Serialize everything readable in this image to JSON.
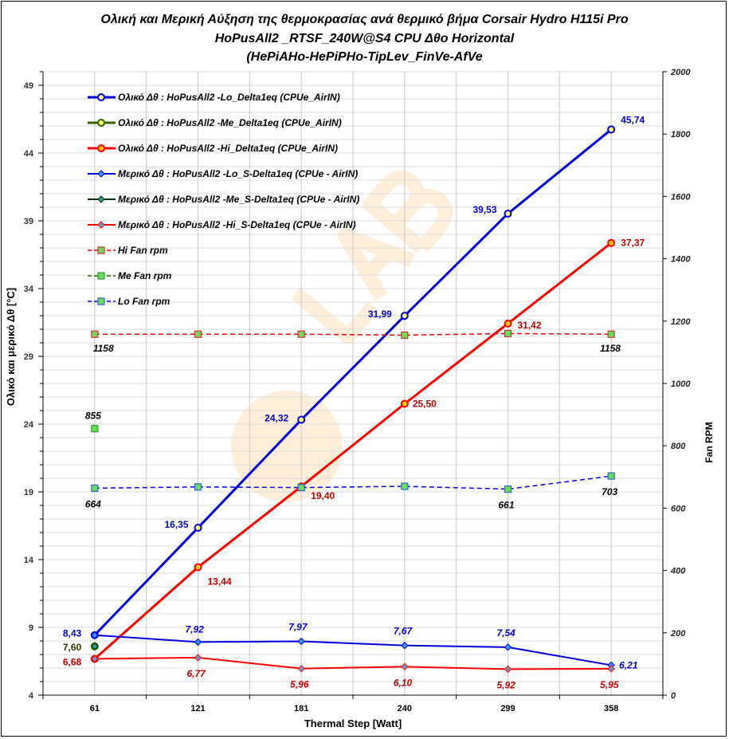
{
  "chart_data": {
    "type": "line",
    "title": [
      "Ολική και Μερική Αύξηση της θερμοκρασίας ανά θερμικό βήμα   Corsair Hydro H115i Pro",
      "HoPusAll2 _RTSF_240W@S4   CPU  Δθο Horizontal",
      "(HePiAHo-HePiPHo-TipLev_FinVe-AfVe"
    ],
    "xlabel": "Thermal Step [Watt]",
    "ylabel": "Ολικό  και  μερικό   Δθ  [°C]",
    "y2label": "Fan RPM",
    "categories": [
      "61",
      "121",
      "181",
      "240",
      "299",
      "358"
    ],
    "ylim": [
      4,
      50
    ],
    "yticks": [
      4,
      9,
      14,
      19,
      24,
      29,
      34,
      39,
      44,
      49
    ],
    "y2lim": [
      0,
      2000
    ],
    "y2ticks": [
      0,
      200,
      400,
      600,
      800,
      1000,
      1200,
      1400,
      1600,
      1800,
      2000
    ],
    "grid": true,
    "legend_placement": "top-left",
    "watermark": "LAB",
    "series": [
      {
        "name": "Ολικό Δθ : HoPusAll2 -Lo_Delta1eq (CPUe_AirIN)",
        "axis": "left",
        "color": "#0000dd",
        "marker": "circle",
        "marker_fill": "#ffff66",
        "width": 3,
        "dash": false,
        "values": [
          8.43,
          16.35,
          24.32,
          31.99,
          39.53,
          45.74
        ],
        "labels": [
          "8,43",
          "16,35",
          "24,32",
          "31,99",
          "39,53",
          "45,74"
        ],
        "label_color": "#0000cc",
        "label_italic": false
      },
      {
        "name": "Ολικό Δθ : HoPusAll2 -Me_Delta1eq (CPUe_AirIN)",
        "axis": "left",
        "color": "#336600",
        "marker": "circle",
        "marker_fill": "#ffff66",
        "width": 3,
        "dash": false,
        "values": [
          7.6,
          null,
          null,
          null,
          null,
          null
        ],
        "labels": [
          "7,60",
          null,
          null,
          null,
          null,
          null
        ],
        "label_color": "#333300",
        "label_italic": false
      },
      {
        "name": "Ολικό Δθ : HoPusAll2 -Hi_Delta1eq (CPUe_AirIN)",
        "axis": "left",
        "color": "#ff0000",
        "marker": "circle",
        "marker_fill": "#ffcc00",
        "width": 3,
        "dash": false,
        "values": [
          6.68,
          13.44,
          19.4,
          25.5,
          31.42,
          37.37
        ],
        "labels": [
          "6,68",
          "13,44",
          "19,40",
          "25,50",
          "31,42",
          "37,37"
        ],
        "label_color": "#c00000",
        "label_italic": false
      },
      {
        "name": "Μερικό Δθ : HoPusAll2 -Lo_S-Delta1eq (CPUe - AirIN)",
        "axis": "left",
        "color": "#0000dd",
        "marker": "diamond",
        "marker_fill": "#3399ff",
        "width": 2,
        "dash": false,
        "values": [
          8.43,
          7.92,
          7.97,
          7.67,
          7.54,
          6.21
        ],
        "labels": [
          null,
          "7,92",
          "7,97",
          "7,67",
          "7,54",
          "6,21"
        ],
        "label_color": "#0000cc",
        "label_italic": true
      },
      {
        "name": "Μερικό Δθ : HoPusAll2 -Me_S-Delta1eq (CPUe - AirIN)",
        "axis": "left",
        "color": "#003300",
        "marker": "diamond",
        "marker_fill": "#339999",
        "width": 2,
        "dash": false,
        "values": [
          7.6,
          null,
          null,
          null,
          null,
          null
        ],
        "labels": [
          null,
          null,
          null,
          null,
          null,
          null
        ],
        "label_color": "#003300",
        "label_italic": true
      },
      {
        "name": "Μερικό Δθ : HoPusAll2 -Hi_S-Delta1eq (CPUe - AirIN)",
        "axis": "left",
        "color": "#ff0000",
        "marker": "diamond",
        "marker_fill": "#6699cc",
        "width": 2,
        "dash": false,
        "values": [
          6.68,
          6.77,
          5.96,
          6.1,
          5.92,
          5.95
        ],
        "labels": [
          null,
          "6,77",
          "5,96",
          "6,10",
          "5,92",
          "5,95"
        ],
        "label_color": "#c00000",
        "label_italic": true
      },
      {
        "name": "Hi Fan  rpm",
        "axis": "right",
        "color": "#ee0000",
        "marker": "square",
        "marker_fill": "#66dd55",
        "marker_edge": "#cc3333",
        "width": 1.5,
        "dash": true,
        "values": [
          1158,
          1158,
          1158,
          1155,
          1160,
          1158
        ],
        "labels": [
          "1158",
          null,
          null,
          null,
          null,
          "1158"
        ],
        "label_color": "#000000",
        "label_italic": true
      },
      {
        "name": "Me Fan  rpm",
        "axis": "right",
        "color": "#336600",
        "marker": "square",
        "marker_fill": "#66dd55",
        "marker_edge": "#339933",
        "width": 1.5,
        "dash": true,
        "values": [
          855,
          null,
          null,
          null,
          null,
          null
        ],
        "labels": [
          "855",
          null,
          null,
          null,
          null,
          null
        ],
        "label_color": "#000000",
        "label_italic": true
      },
      {
        "name": "Lo Fan  rpm",
        "axis": "right",
        "color": "#0000ee",
        "marker": "square",
        "marker_fill": "#66dd55",
        "marker_edge": "#3366cc",
        "width": 1.5,
        "dash": true,
        "values": [
          664,
          668,
          666,
          670,
          661,
          703
        ],
        "labels": [
          "664",
          null,
          null,
          null,
          "661",
          "703"
        ],
        "label_color": "#000000",
        "label_italic": true
      }
    ]
  }
}
